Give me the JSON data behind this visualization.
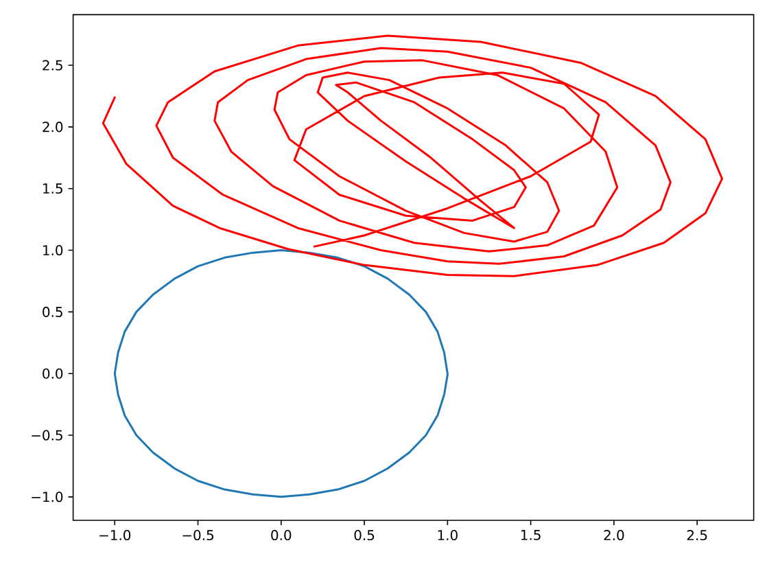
{
  "chart_data": {
    "type": "line",
    "xlim": [
      -1.25,
      2.84
    ],
    "ylim": [
      -1.19,
      2.91
    ],
    "xticks": [
      {
        "value": -1.0,
        "label": "−1.0"
      },
      {
        "value": -0.5,
        "label": "−0.5"
      },
      {
        "value": 0.0,
        "label": "0.0"
      },
      {
        "value": 0.5,
        "label": "0.5"
      },
      {
        "value": 1.0,
        "label": "1.0"
      },
      {
        "value": 1.5,
        "label": "1.5"
      },
      {
        "value": 2.0,
        "label": "2.0"
      },
      {
        "value": 2.5,
        "label": "2.5"
      }
    ],
    "yticks": [
      {
        "value": -1.0,
        "label": "−1.0"
      },
      {
        "value": -0.5,
        "label": "−0.5"
      },
      {
        "value": 0.0,
        "label": "0.0"
      },
      {
        "value": 0.5,
        "label": "0.5"
      },
      {
        "value": 1.0,
        "label": "1.0"
      },
      {
        "value": 1.5,
        "label": "1.5"
      },
      {
        "value": 2.0,
        "label": "2.0"
      },
      {
        "value": 2.5,
        "label": "2.5"
      }
    ],
    "grid": false,
    "marker": "none",
    "line_style": "solid",
    "series": [
      {
        "color": "#1f77b4",
        "x": [
          1.0,
          0.98,
          0.94,
          0.87,
          0.77,
          0.64,
          0.5,
          0.34,
          0.17,
          0.0,
          -0.17,
          -0.34,
          -0.5,
          -0.64,
          -0.77,
          -0.87,
          -0.94,
          -0.98,
          -1.0,
          -0.98,
          -0.94,
          -0.87,
          -0.77,
          -0.64,
          -0.5,
          -0.34,
          -0.17,
          0.0,
          0.17,
          0.34,
          0.5,
          0.64,
          0.77,
          0.87,
          0.94,
          0.98,
          1.0
        ],
        "values": [
          0.0,
          0.17,
          0.34,
          0.5,
          0.64,
          0.77,
          0.87,
          0.94,
          0.98,
          1.0,
          0.98,
          0.94,
          0.87,
          0.77,
          0.64,
          0.5,
          0.34,
          0.17,
          0.0,
          -0.17,
          -0.34,
          -0.5,
          -0.64,
          -0.77,
          -0.87,
          -0.94,
          -0.98,
          -1.0,
          -0.98,
          -0.94,
          -0.87,
          -0.77,
          -0.64,
          -0.5,
          -0.34,
          -0.17,
          -0.01
        ]
      },
      {
        "color": "#ff0000",
        "x": [
          -1.0,
          -1.07,
          -0.93,
          -0.65,
          -0.37,
          0.04,
          0.5,
          1.0,
          1.4,
          1.9,
          2.3,
          2.55,
          2.65,
          2.55,
          2.25,
          1.8,
          1.2,
          0.64,
          0.1,
          -0.4,
          -0.68,
          -0.75,
          -0.65,
          -0.35,
          0.1,
          0.6,
          1.0,
          1.31,
          1.7,
          2.05,
          2.28,
          2.34,
          2.25,
          1.95,
          1.5,
          1.0,
          0.6,
          0.15,
          -0.2,
          -0.38,
          -0.4,
          -0.3,
          -0.05,
          0.35,
          0.8,
          1.25,
          1.6,
          1.88,
          2.02,
          1.95,
          1.7,
          1.3,
          0.85,
          0.5,
          0.15,
          -0.02,
          -0.04,
          0.05,
          0.35,
          0.75,
          1.1,
          1.4,
          1.6,
          1.67,
          1.6,
          1.35,
          1.0,
          0.65,
          0.4,
          0.25,
          0.22,
          0.4,
          0.75,
          1.1,
          1.4,
          1.2,
          0.9,
          0.6,
          0.4,
          0.33,
          0.45,
          0.8,
          1.15,
          1.4,
          1.47,
          1.4,
          1.15,
          0.75,
          0.35,
          0.08,
          0.15,
          0.5,
          0.95,
          1.33,
          1.7,
          1.91,
          1.86,
          1.5,
          1.0,
          0.5,
          0.2
        ],
        "values": [
          2.24,
          2.03,
          1.7,
          1.36,
          1.18,
          1.01,
          0.88,
          0.8,
          0.79,
          0.88,
          1.06,
          1.3,
          1.58,
          1.9,
          2.25,
          2.52,
          2.69,
          2.74,
          2.66,
          2.45,
          2.2,
          2.01,
          1.75,
          1.45,
          1.18,
          1.0,
          0.91,
          0.89,
          0.95,
          1.12,
          1.33,
          1.55,
          1.85,
          2.2,
          2.48,
          2.61,
          2.64,
          2.55,
          2.38,
          2.2,
          2.05,
          1.8,
          1.52,
          1.24,
          1.06,
          0.99,
          1.04,
          1.2,
          1.51,
          1.8,
          2.15,
          2.42,
          2.54,
          2.53,
          2.42,
          2.28,
          2.14,
          1.9,
          1.6,
          1.32,
          1.14,
          1.07,
          1.15,
          1.32,
          1.55,
          1.85,
          2.15,
          2.38,
          2.44,
          2.4,
          2.28,
          2.05,
          1.72,
          1.42,
          1.18,
          1.4,
          1.75,
          2.05,
          2.28,
          2.34,
          2.36,
          2.2,
          1.9,
          1.65,
          1.51,
          1.35,
          1.24,
          1.28,
          1.45,
          1.73,
          1.98,
          2.25,
          2.4,
          2.44,
          2.35,
          2.1,
          1.88,
          1.6,
          1.34,
          1.12,
          1.03
        ]
      }
    ]
  }
}
